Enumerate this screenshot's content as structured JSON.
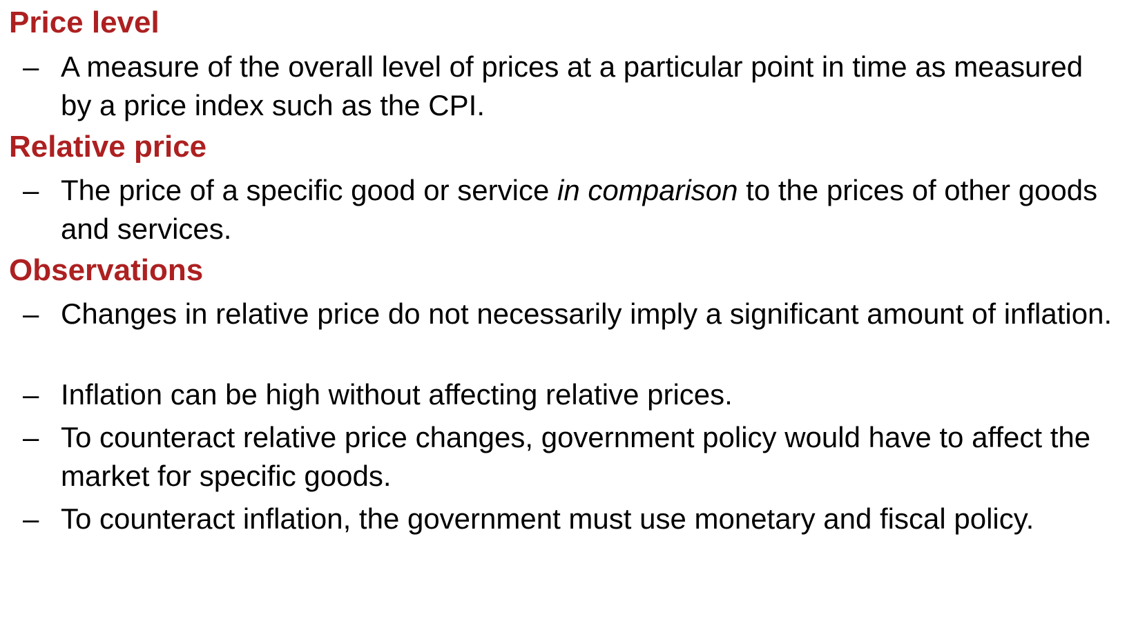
{
  "accent_color": "#ad2021",
  "sections": [
    {
      "heading": "Price level",
      "bullets": [
        {
          "marker": "–",
          "text": "A measure of the overall level of prices at a particular point in time as measured by a price index such as the CPI."
        }
      ]
    },
    {
      "heading": "Relative price",
      "bullets": [
        {
          "marker": "–",
          "text_before": "The price of a specific good or service ",
          "text_emphasis": "in comparison",
          "text_after": " to the prices of other goods and services."
        }
      ]
    },
    {
      "heading": "Observations",
      "bullets": [
        {
          "marker": "–",
          "text": "Changes in relative price do not necessarily imply a significant amount of inflation."
        },
        {
          "marker": "–",
          "text": "Inflation can be high without affecting relative prices."
        },
        {
          "marker": "–",
          "text": "To counteract relative price changes, government policy would have to affect the market for specific goods."
        },
        {
          "marker": "–",
          "text": "To counteract inflation, the government must use monetary and fiscal policy."
        }
      ]
    }
  ]
}
